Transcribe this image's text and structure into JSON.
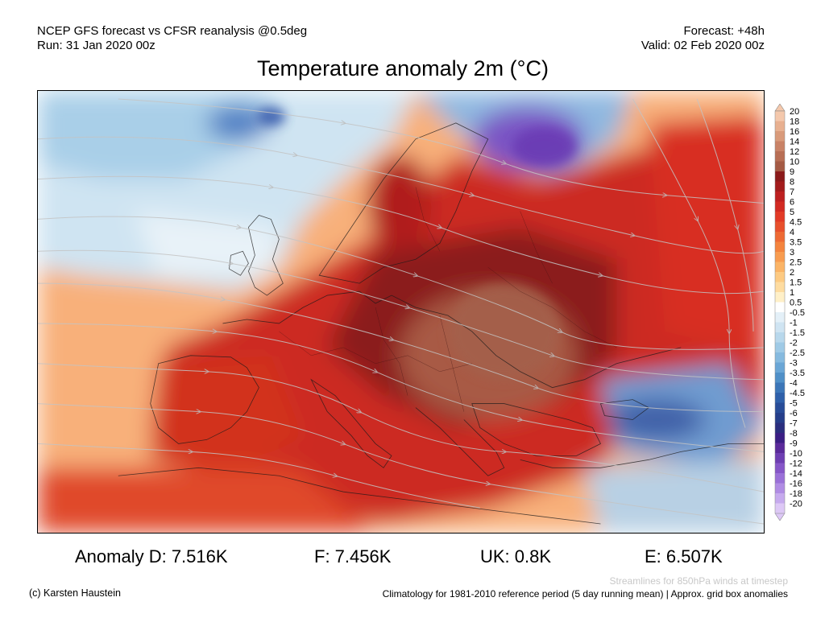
{
  "header": {
    "line1": "NCEP GFS forecast vs CFSR reanalysis @0.5deg",
    "line2": "Run: 31 Jan 2020 00z",
    "forecast": "Forecast: +48h",
    "valid": "Valid: 02 Feb 2020 00z"
  },
  "title": "Temperature anomaly 2m (°C)",
  "stats": {
    "d": "Anomaly D: 7.516K",
    "f": "F: 7.456K",
    "uk": "UK: 0.8K",
    "e": "E: 6.507K"
  },
  "footer": {
    "streamlines": "Streamlines for 850hPa winds at timestep",
    "credit": "(c) Karsten Haustein",
    "climatology": "Climatology for 1981-2010 reference period (5 day running mean) | Approx. grid box anomalies"
  },
  "legend": {
    "labels": [
      "20",
      "18",
      "16",
      "14",
      "12",
      "10",
      "9",
      "8",
      "7",
      "6",
      "5",
      "4.5",
      "4",
      "3.5",
      "3",
      "2.5",
      "2",
      "1.5",
      "1",
      "0.5",
      "-0.5",
      "-1",
      "-1.5",
      "-2",
      "-2.5",
      "-3",
      "-3.5",
      "-4",
      "-4.5",
      "-5",
      "-6",
      "-7",
      "-8",
      "-9",
      "-10",
      "-12",
      "-14",
      "-16",
      "-18",
      "-20"
    ],
    "colors": [
      "#f4c8ac",
      "#e8b090",
      "#d99a7a",
      "#c98266",
      "#b86e54",
      "#a55a44",
      "#8b1a1a",
      "#a31c1c",
      "#bd2020",
      "#d22a22",
      "#e23a26",
      "#e8502c",
      "#ee6a34",
      "#f4843e",
      "#f89c50",
      "#fbb466",
      "#fdca82",
      "#fedca0",
      "#fff0c8",
      "#ffffff",
      "#e4f0f8",
      "#cfe4f2",
      "#b8d8ec",
      "#9fcae6",
      "#86badf",
      "#6aa6d6",
      "#5090c8",
      "#3c76b8",
      "#2f60aa",
      "#284c98",
      "#253e8a",
      "#2a2e7e",
      "#3a1e84",
      "#5a2a9a",
      "#6e3eb2",
      "#8656c8",
      "#9a70d8",
      "#b08ce4",
      "#c6aaee",
      "#ddc8f6"
    ]
  }
}
